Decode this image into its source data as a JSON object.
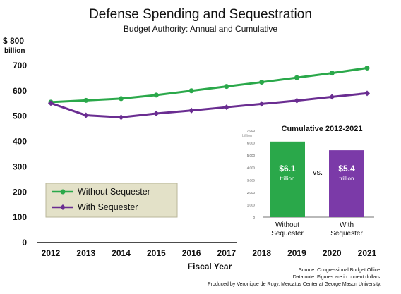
{
  "chart_data": [
    {
      "type": "line",
      "title": "Defense Spending and Sequestration",
      "subtitle": "Budget Authority: Annual and Cumulative",
      "xlabel": "Fiscal Year",
      "ylabel": "$ 800 billion",
      "ylabel_parts": [
        "$ 800",
        "billion"
      ],
      "ylim": [
        0,
        800
      ],
      "yticks": [
        0,
        100,
        200,
        300,
        400,
        500,
        600,
        700
      ],
      "x": [
        "2012",
        "2013",
        "2014",
        "2015",
        "2016",
        "2017",
        "2018",
        "2019",
        "2020",
        "2021"
      ],
      "grid": false,
      "legend_position": "bottom-left",
      "series": [
        {
          "name": "Without Sequester",
          "color": "#2aa84a",
          "values": [
            555,
            562,
            569,
            583,
            600,
            617,
            634,
            652,
            670,
            690
          ]
        },
        {
          "name": "With Sequester",
          "color": "#6a2d91",
          "values": [
            551,
            503,
            495,
            510,
            522,
            535,
            548,
            561,
            576,
            590
          ]
        }
      ]
    },
    {
      "type": "bar",
      "title": "Cumulative 2012-2021",
      "ylabel": "billion",
      "ylim": [
        0,
        7000
      ],
      "yticks": [
        "0",
        "1,000",
        "2,000",
        "3,000",
        "4,000",
        "5,000",
        "6,000",
        "7,000"
      ],
      "ytick_values": [
        0,
        1000,
        2000,
        3000,
        4000,
        5000,
        6000,
        7000
      ],
      "categories": [
        {
          "line1": "Without",
          "line2": "Sequester"
        },
        {
          "line1": "With",
          "line2": "Sequester"
        }
      ],
      "values": [
        6100,
        5400
      ],
      "value_labels": [
        "$6.1",
        "$5.4"
      ],
      "unit_label": "trillion",
      "colors": [
        "#2aa84a",
        "#7b3aa8"
      ],
      "vs_label": "vs."
    }
  ],
  "notes": {
    "source": "Source: Congressional Budget Office.",
    "data_note": "Data note: Figures are in current dollars.",
    "credit": "Produced by Veronique de Rugy, Mercatus Center at George Mason University."
  }
}
